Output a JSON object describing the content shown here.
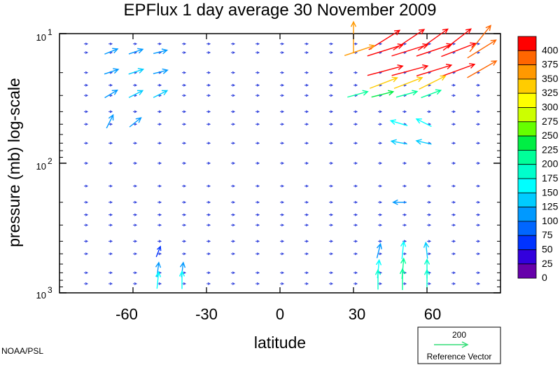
{
  "chart_data": {
    "type": "vector",
    "title": "EPFlux  1 day average  30 November  2009",
    "xlabel": "latitude",
    "ylabel": "pressure (mb)  log-scale",
    "xlim": [
      -90,
      90
    ],
    "ylim": [
      1000,
      10
    ],
    "yscale": "log",
    "x_ticks": [
      "-60",
      "-30",
      "0",
      "30",
      "60"
    ],
    "y_ticks": [
      {
        "base": "10",
        "exp": "1",
        "value": 10
      },
      {
        "base": "10",
        "exp": "2",
        "value": 100
      },
      {
        "base": "10",
        "exp": "3",
        "value": 1000
      }
    ],
    "colorbar": {
      "levels": [
        "400",
        "375",
        "350",
        "325",
        "300",
        "275",
        "250",
        "225",
        "200",
        "175",
        "150",
        "125",
        "100",
        "75",
        "50",
        "25",
        "0"
      ],
      "colors": [
        "#ff0000",
        "#ff6600",
        "#ff9900",
        "#ffcc00",
        "#ffff00",
        "#ccff00",
        "#66ff00",
        "#00ee44",
        "#00ff99",
        "#00ffcc",
        "#00ffff",
        "#00ccff",
        "#0099ff",
        "#0066ff",
        "#0033ff",
        "#3300dd",
        "#6600aa"
      ]
    },
    "reference_vector": {
      "magnitude": "200",
      "label": "Reference Vector",
      "color": "#33dd77"
    },
    "credit": "NOAA/PSL",
    "vectors": [
      {
        "lat": 30,
        "p": 12,
        "u": 0,
        "v": 1,
        "mag": 350
      },
      {
        "lat": 40,
        "p": 12,
        "u": 1.6,
        "v": 1,
        "mag": 420
      },
      {
        "lat": 50,
        "p": 12,
        "u": 1.5,
        "v": 1,
        "mag": 430
      },
      {
        "lat": 60,
        "p": 12,
        "u": 1.4,
        "v": 1,
        "mag": 420
      },
      {
        "lat": 70,
        "p": 12,
        "u": 1.3,
        "v": 1,
        "mag": 400
      },
      {
        "lat": 80,
        "p": 12,
        "u": 0.8,
        "v": 1,
        "mag": 380
      },
      {
        "lat": 30,
        "p": 14,
        "u": 1.5,
        "v": 0.5,
        "mag": 350
      },
      {
        "lat": 40,
        "p": 14,
        "u": 1.6,
        "v": 0.5,
        "mag": 430
      },
      {
        "lat": 50,
        "p": 14,
        "u": 1.6,
        "v": 0.5,
        "mag": 440
      },
      {
        "lat": 60,
        "p": 14,
        "u": 1.5,
        "v": 0.5,
        "mag": 430
      },
      {
        "lat": 70,
        "p": 14,
        "u": 1.3,
        "v": 0.5,
        "mag": 420
      },
      {
        "lat": 80,
        "p": 14,
        "u": 0.8,
        "v": 0.5,
        "mag": 380
      },
      {
        "lat": 40,
        "p": 20,
        "u": 1.5,
        "v": 0.4,
        "mag": 420
      },
      {
        "lat": 50,
        "p": 20,
        "u": 1.5,
        "v": 0.4,
        "mag": 430
      },
      {
        "lat": 60,
        "p": 20,
        "u": 1.3,
        "v": 0.4,
        "mag": 420
      },
      {
        "lat": 70,
        "p": 20,
        "u": 1.1,
        "v": 0.4,
        "mag": 400
      },
      {
        "lat": 80,
        "p": 20,
        "u": 0.7,
        "v": 0.4,
        "mag": 380
      },
      {
        "lat": 40,
        "p": 25,
        "u": 1.3,
        "v": 0.5,
        "mag": 320
      },
      {
        "lat": 50,
        "p": 25,
        "u": 1.3,
        "v": 0.5,
        "mag": 330
      },
      {
        "lat": 60,
        "p": 25,
        "u": 1.0,
        "v": 0.5,
        "mag": 320
      },
      {
        "lat": 30,
        "p": 30,
        "u": 1.1,
        "v": 0.3,
        "mag": 200
      },
      {
        "lat": 40,
        "p": 30,
        "u": 1.2,
        "v": 0.3,
        "mag": 220
      },
      {
        "lat": 50,
        "p": 30,
        "u": 1.1,
        "v": 0.3,
        "mag": 210
      },
      {
        "lat": 60,
        "p": 30,
        "u": 0.8,
        "v": 0.3,
        "mag": 200
      },
      {
        "lat": -70,
        "p": 14,
        "u": 0.5,
        "v": 0.2,
        "mag": 100
      },
      {
        "lat": -60,
        "p": 14,
        "u": 0.6,
        "v": 0.2,
        "mag": 110
      },
      {
        "lat": -50,
        "p": 14,
        "u": 0.6,
        "v": 0.15,
        "mag": 100
      },
      {
        "lat": -70,
        "p": 20,
        "u": 0.6,
        "v": 0.2,
        "mag": 110
      },
      {
        "lat": -60,
        "p": 20,
        "u": 0.6,
        "v": 0.2,
        "mag": 120
      },
      {
        "lat": -50,
        "p": 20,
        "u": 0.6,
        "v": 0.15,
        "mag": 110
      },
      {
        "lat": -70,
        "p": 30,
        "u": 0.5,
        "v": 0.3,
        "mag": 110
      },
      {
        "lat": -60,
        "p": 30,
        "u": 0.6,
        "v": 0.3,
        "mag": 120
      },
      {
        "lat": -50,
        "p": 30,
        "u": 0.6,
        "v": 0.3,
        "mag": 120
      },
      {
        "lat": -70,
        "p": 50,
        "u": 0.3,
        "v": 0.6,
        "mag": 110
      },
      {
        "lat": -60,
        "p": 50,
        "u": 0.5,
        "v": 0.4,
        "mag": 110
      },
      {
        "lat": 50,
        "p": 50,
        "u": -1.0,
        "v": 0.3,
        "mag": 150
      },
      {
        "lat": 60,
        "p": 50,
        "u": -0.8,
        "v": 0.4,
        "mag": 140
      },
      {
        "lat": 50,
        "p": 70,
        "u": -1.1,
        "v": 0.2,
        "mag": 130
      },
      {
        "lat": 60,
        "p": 70,
        "u": -0.9,
        "v": 0.2,
        "mag": 120
      },
      {
        "lat": 50,
        "p": 200,
        "u": -0.7,
        "v": 0,
        "mag": 90
      },
      {
        "lat": -50,
        "p": 500,
        "u": 0.2,
        "v": 0.5,
        "mag": 60
      },
      {
        "lat": 40,
        "p": 500,
        "u": 0.2,
        "v": 0.8,
        "mag": 110
      },
      {
        "lat": 50,
        "p": 500,
        "u": 0.1,
        "v": 1.0,
        "mag": 150
      },
      {
        "lat": 60,
        "p": 500,
        "u": -0.1,
        "v": 0.9,
        "mag": 130
      },
      {
        "lat": -50,
        "p": 700,
        "u": 0.1,
        "v": 0.8,
        "mag": 110
      },
      {
        "lat": -40,
        "p": 700,
        "u": 0.1,
        "v": 0.8,
        "mag": 110
      },
      {
        "lat": 40,
        "p": 700,
        "u": 0.1,
        "v": 1.1,
        "mag": 160
      },
      {
        "lat": 50,
        "p": 700,
        "u": 0.1,
        "v": 1.2,
        "mag": 190
      },
      {
        "lat": 60,
        "p": 700,
        "u": 0,
        "v": 1.0,
        "mag": 170
      },
      {
        "lat": -50,
        "p": 850,
        "u": 0.1,
        "v": 1.0,
        "mag": 140
      },
      {
        "lat": -40,
        "p": 850,
        "u": 0,
        "v": 1.0,
        "mag": 150
      },
      {
        "lat": 40,
        "p": 850,
        "u": 0,
        "v": 1.2,
        "mag": 180
      },
      {
        "lat": 50,
        "p": 850,
        "u": 0,
        "v": 1.3,
        "mag": 200
      },
      {
        "lat": 60,
        "p": 850,
        "u": 0,
        "v": 1.1,
        "mag": 180
      }
    ]
  }
}
